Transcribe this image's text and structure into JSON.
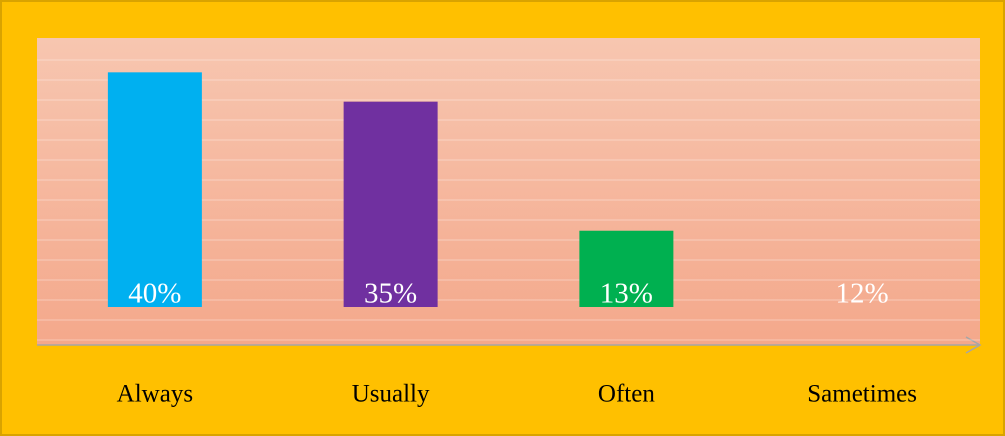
{
  "chart_data": {
    "type": "bar",
    "categories": [
      "Always",
      "Usually",
      "Often",
      "Sametimes"
    ],
    "values": [
      40,
      35,
      13,
      12
    ],
    "value_labels": [
      "40%",
      "35%",
      "13%",
      "12%"
    ],
    "colors": [
      "#00b0f0",
      "#7030a0",
      "#00b050",
      "none"
    ],
    "ylim": [
      0,
      45
    ],
    "grid": true
  }
}
